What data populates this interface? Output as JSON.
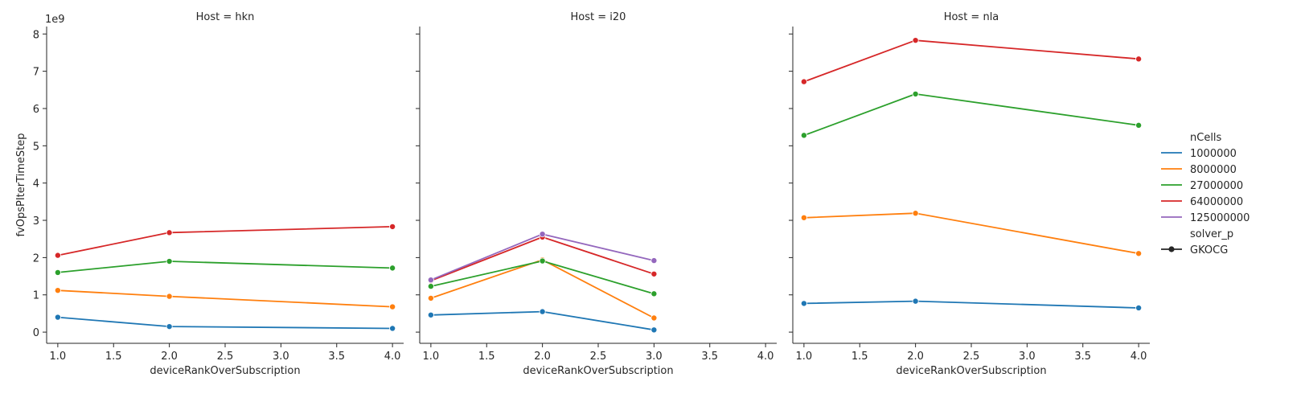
{
  "chart_data": {
    "type": "line",
    "facet_label": "Host",
    "ylabel": "fvOpsPIterTimeStep",
    "xlabel": "deviceRankOverSubscription",
    "y_offset_text": "1e9",
    "ylim": [
      -0.3,
      8.2
    ],
    "yticks": [
      0,
      1,
      2,
      3,
      4,
      5,
      6,
      7,
      8
    ],
    "ytick_labels": [
      "0",
      "1",
      "2",
      "3",
      "4",
      "5",
      "6",
      "7",
      "8"
    ],
    "xlim": [
      0.9,
      4.1
    ],
    "xticks": [
      1.0,
      1.5,
      2.0,
      2.5,
      3.0,
      3.5,
      4.0
    ],
    "xtick_labels": [
      "1.0",
      "1.5",
      "2.0",
      "2.5",
      "3.0",
      "3.5",
      "4.0"
    ],
    "legend": {
      "title": "nCells",
      "entries": [
        {
          "label": "1000000",
          "color": "#1f77b4"
        },
        {
          "label": "8000000",
          "color": "#ff7f0e"
        },
        {
          "label": "27000000",
          "color": "#2ca02c"
        },
        {
          "label": "64000000",
          "color": "#d62728"
        },
        {
          "label": "125000000",
          "color": "#9467bd"
        }
      ],
      "style_title": "solver_p",
      "style_entry": "GKOCG"
    },
    "panels": [
      {
        "title": "Host = hkn",
        "series": [
          {
            "name": "1000000",
            "x": [
              1,
              2,
              4
            ],
            "y": [
              0.4,
              0.15,
              0.1
            ]
          },
          {
            "name": "8000000",
            "x": [
              1,
              2,
              4
            ],
            "y": [
              1.12,
              0.96,
              0.68
            ]
          },
          {
            "name": "27000000",
            "x": [
              1,
              2,
              4
            ],
            "y": [
              1.6,
              1.9,
              1.72
            ]
          },
          {
            "name": "64000000",
            "x": [
              1,
              2,
              4
            ],
            "y": [
              2.06,
              2.67,
              2.83
            ]
          }
        ]
      },
      {
        "title": "Host = i20",
        "series": [
          {
            "name": "1000000",
            "x": [
              1,
              2,
              3
            ],
            "y": [
              0.46,
              0.55,
              0.06
            ]
          },
          {
            "name": "8000000",
            "x": [
              1,
              2,
              3
            ],
            "y": [
              0.91,
              1.94,
              0.38
            ]
          },
          {
            "name": "27000000",
            "x": [
              1,
              2,
              3
            ],
            "y": [
              1.23,
              1.91,
              1.03
            ]
          },
          {
            "name": "64000000",
            "x": [
              1,
              2,
              3
            ],
            "y": [
              1.38,
              2.55,
              1.56
            ]
          },
          {
            "name": "125000000",
            "x": [
              1,
              2,
              3
            ],
            "y": [
              1.4,
              2.63,
              1.92
            ]
          }
        ]
      },
      {
        "title": "Host = nla",
        "series": [
          {
            "name": "1000000",
            "x": [
              1,
              2,
              4
            ],
            "y": [
              0.77,
              0.83,
              0.65
            ]
          },
          {
            "name": "8000000",
            "x": [
              1,
              2,
              4
            ],
            "y": [
              3.07,
              3.19,
              2.11
            ]
          },
          {
            "name": "27000000",
            "x": [
              1,
              2,
              4
            ],
            "y": [
              5.28,
              6.39,
              5.55
            ]
          },
          {
            "name": "64000000",
            "x": [
              1,
              2,
              4
            ],
            "y": [
              6.72,
              7.83,
              7.33
            ]
          }
        ]
      }
    ]
  }
}
